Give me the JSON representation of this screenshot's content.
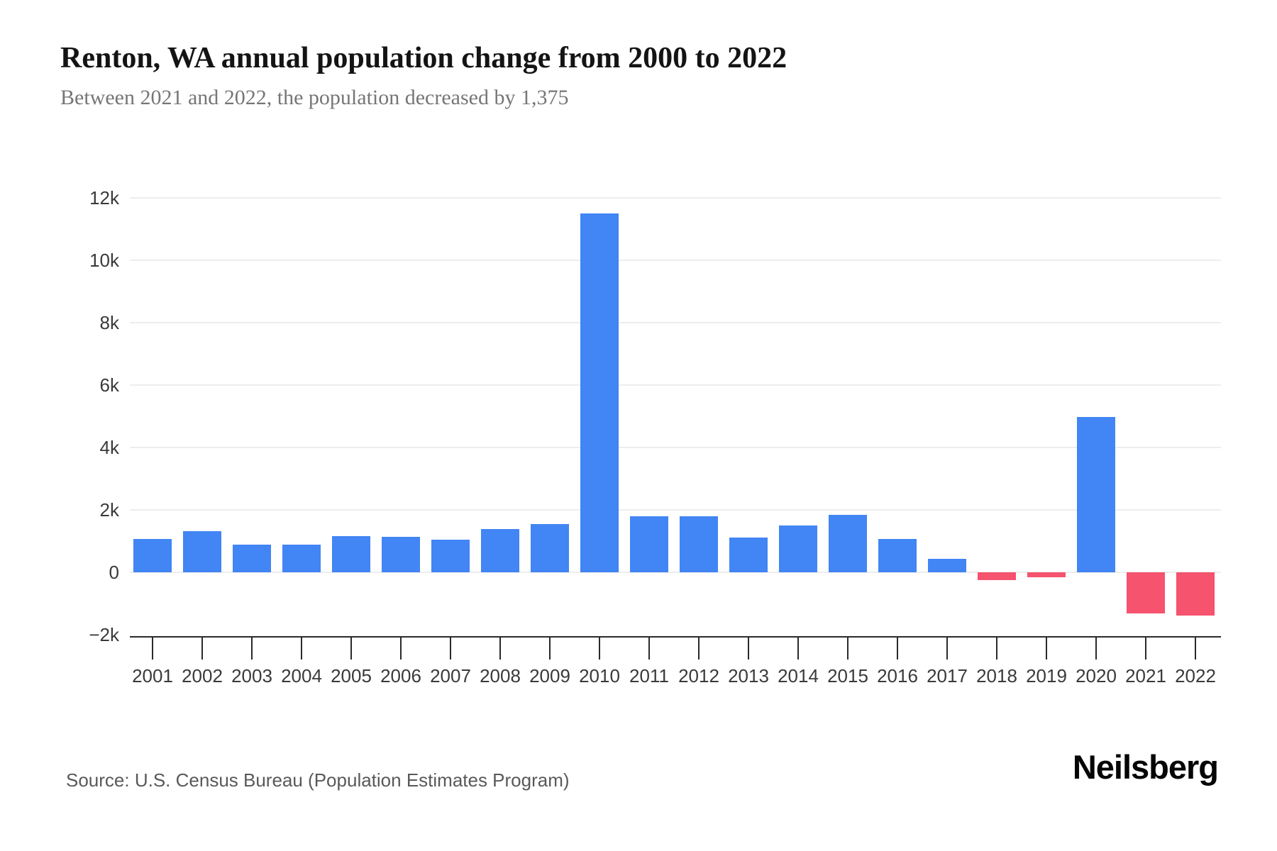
{
  "header": {
    "title": "Renton, WA annual population change from 2000 to 2022",
    "subtitle": "Between 2021 and 2022, the population decreased by 1,375"
  },
  "chart_data": {
    "type": "bar",
    "title": "Renton, WA annual population change from 2000 to 2022",
    "subtitle": "Between 2021 and 2022, the population decreased by 1,375",
    "categories": [
      "2001",
      "2002",
      "2003",
      "2004",
      "2005",
      "2006",
      "2007",
      "2008",
      "2009",
      "2010",
      "2011",
      "2012",
      "2013",
      "2014",
      "2015",
      "2016",
      "2017",
      "2018",
      "2019",
      "2020",
      "2021",
      "2022"
    ],
    "values": [
      1070,
      1310,
      880,
      880,
      1160,
      1140,
      1050,
      1390,
      1540,
      11500,
      1800,
      1790,
      1110,
      1490,
      1840,
      1060,
      430,
      -250,
      -160,
      4970,
      -1310,
      -1375
    ],
    "xlabel": "",
    "ylabel": "",
    "ylim": [
      -2000,
      12000
    ],
    "grid": true,
    "legend": "none",
    "yticks": [
      {
        "label": "12k",
        "value": 12000
      },
      {
        "label": "10k",
        "value": 10000
      },
      {
        "label": "8k",
        "value": 8000
      },
      {
        "label": "6k",
        "value": 6000
      },
      {
        "label": "4k",
        "value": 4000
      },
      {
        "label": "2k",
        "value": 2000
      },
      {
        "label": "0",
        "value": 0
      },
      {
        "label": "−2k",
        "value": -2000
      }
    ],
    "colors": {
      "positive": "#4285F4",
      "negative": "#F5536E"
    }
  },
  "footer": {
    "source": "Source: U.S. Census Bureau (Population Estimates Program)",
    "brand": "Neilsberg"
  }
}
